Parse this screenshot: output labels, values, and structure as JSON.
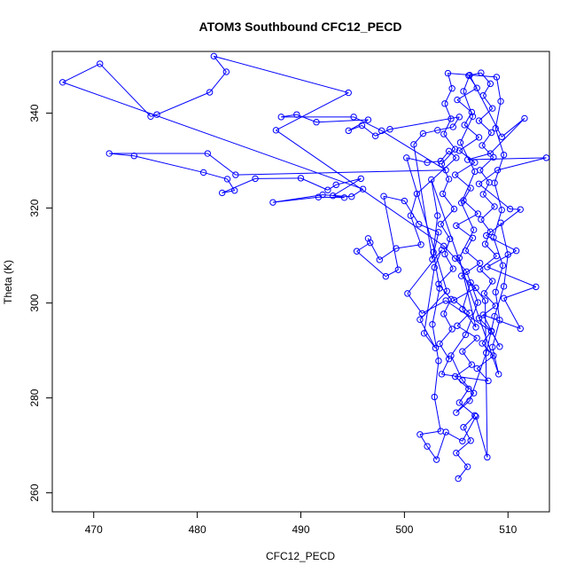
{
  "chart_data": {
    "type": "line",
    "title": "ATOM3 Southbound CFC12_PECD",
    "xlabel": "CFC12_PECD",
    "ylabel": "Theta (K)",
    "xlim": [
      466,
      514
    ],
    "ylim": [
      256,
      353
    ],
    "xticks": [
      470,
      480,
      490,
      500,
      510
    ],
    "yticks": [
      260,
      280,
      300,
      320,
      340
    ],
    "grid": false,
    "legend": "none",
    "marker": "open-circle",
    "colors": {
      "series": "#0000ff",
      "axis": "#000000"
    },
    "series": [
      {
        "name": "",
        "points": [
          [
            505.2,
            263.0
          ],
          [
            506.1,
            265.5
          ],
          [
            505.0,
            268.4
          ],
          [
            506.4,
            271.0
          ],
          [
            505.7,
            273.8
          ],
          [
            506.8,
            276.3
          ],
          [
            505.3,
            279.0
          ],
          [
            506.2,
            281.9
          ],
          [
            504.9,
            284.5
          ],
          [
            506.5,
            287.0
          ],
          [
            505.6,
            289.8
          ],
          [
            507.0,
            292.6
          ],
          [
            505.1,
            295.2
          ],
          [
            506.3,
            297.9
          ],
          [
            504.8,
            300.6
          ],
          [
            506.9,
            303.2
          ],
          [
            505.5,
            305.7
          ],
          [
            507.3,
            308.4
          ],
          [
            505.9,
            311.0
          ],
          [
            506.6,
            313.7
          ],
          [
            505.0,
            316.3
          ],
          [
            507.1,
            318.8
          ],
          [
            505.7,
            321.6
          ],
          [
            506.4,
            324.2
          ],
          [
            504.9,
            327.0
          ],
          [
            506.8,
            329.6
          ],
          [
            505.3,
            332.1
          ],
          [
            507.2,
            334.9
          ],
          [
            505.8,
            337.5
          ],
          [
            506.5,
            340.2
          ],
          [
            505.1,
            342.8
          ],
          [
            507.0,
            345.3
          ],
          [
            506.2,
            347.9
          ],
          [
            507.4,
            348.5
          ],
          [
            508.3,
            346.2
          ],
          [
            507.6,
            343.7
          ],
          [
            508.5,
            341.0
          ],
          [
            507.2,
            338.4
          ],
          [
            508.4,
            335.9
          ],
          [
            507.5,
            333.2
          ],
          [
            508.6,
            330.7
          ],
          [
            507.3,
            328.0
          ],
          [
            508.2,
            325.4
          ],
          [
            507.6,
            322.9
          ],
          [
            508.7,
            320.3
          ],
          [
            507.4,
            317.6
          ],
          [
            508.3,
            315.0
          ],
          [
            507.8,
            312.4
          ],
          [
            508.9,
            309.9
          ],
          [
            507.3,
            307.1
          ],
          [
            508.5,
            304.6
          ],
          [
            507.7,
            302.0
          ],
          [
            508.8,
            299.4
          ],
          [
            507.2,
            296.8
          ],
          [
            508.4,
            294.1
          ],
          [
            507.5,
            291.5
          ],
          [
            508.6,
            288.9
          ],
          [
            507.0,
            286.2
          ],
          [
            508.1,
            283.6
          ],
          [
            503.6,
            285.0
          ],
          [
            504.3,
            288.2
          ],
          [
            503.4,
            291.4
          ],
          [
            504.6,
            294.5
          ],
          [
            503.8,
            297.7
          ],
          [
            504.5,
            300.8
          ],
          [
            503.3,
            304.0
          ],
          [
            504.7,
            307.2
          ],
          [
            503.9,
            310.3
          ],
          [
            504.4,
            313.5
          ],
          [
            503.5,
            316.6
          ],
          [
            504.8,
            319.8
          ],
          [
            503.7,
            323.0
          ],
          [
            504.3,
            326.1
          ],
          [
            503.6,
            329.3
          ],
          [
            504.9,
            332.4
          ],
          [
            503.8,
            335.6
          ],
          [
            504.5,
            338.8
          ],
          [
            503.9,
            342.0
          ],
          [
            504.6,
            345.2
          ],
          [
            504.2,
            348.4
          ],
          [
            508.9,
            347.6
          ],
          [
            509.3,
            342.5
          ],
          [
            508.8,
            336.8
          ],
          [
            509.6,
            331.2
          ],
          [
            508.7,
            325.3
          ],
          [
            509.4,
            319.6
          ],
          [
            508.6,
            313.8
          ],
          [
            509.5,
            307.9
          ],
          [
            508.8,
            302.3
          ],
          [
            509.2,
            296.4
          ],
          [
            508.5,
            290.7
          ],
          [
            509.1,
            285.0
          ],
          [
            502.6,
            326.0
          ],
          [
            503.2,
            318.4
          ],
          [
            502.8,
            310.7
          ],
          [
            503.4,
            303.1
          ],
          [
            502.7,
            295.5
          ],
          [
            503.3,
            287.8
          ],
          [
            502.9,
            280.2
          ],
          [
            503.5,
            273.0
          ],
          [
            501.5,
            272.3
          ],
          [
            502.2,
            269.8
          ],
          [
            503.1,
            267.0
          ],
          [
            504.0,
            272.8
          ],
          [
            505.6,
            270.9
          ],
          [
            506.9,
            276.1
          ],
          [
            508.0,
            267.5
          ],
          [
            507.8,
            300.5
          ],
          [
            506.4,
            304.3
          ],
          [
            505.6,
            298.7
          ],
          [
            506.9,
            294.9
          ],
          [
            505.3,
            309.5
          ],
          [
            506.7,
            315.4
          ],
          [
            505.5,
            321.1
          ],
          [
            506.8,
            327.7
          ],
          [
            505.4,
            333.8
          ],
          [
            506.6,
            339.3
          ],
          [
            505.7,
            344.6
          ],
          [
            506.3,
            348.0
          ],
          [
            509.4,
            335.0
          ],
          [
            511.6,
            338.9
          ],
          [
            508.3,
            331.5
          ],
          [
            506.1,
            330.2
          ],
          [
            513.7,
            330.6
          ],
          [
            509.0,
            328.0
          ],
          [
            507.2,
            325.1
          ],
          [
            510.2,
            319.8
          ],
          [
            511.2,
            319.7
          ],
          [
            507.9,
            314.2
          ],
          [
            510.8,
            311.0
          ],
          [
            508.0,
            307.6
          ],
          [
            512.7,
            303.4
          ],
          [
            509.6,
            301.0
          ],
          [
            511.2,
            294.6
          ],
          [
            507.6,
            297.5
          ],
          [
            509.2,
            290.8
          ],
          [
            508.4,
            294.0
          ],
          [
            504.0,
            300.5
          ],
          [
            501.7,
            297.8
          ],
          [
            500.3,
            302.0
          ],
          [
            503.6,
            311.2
          ],
          [
            502.9,
            307.5
          ],
          [
            501.9,
            293.6
          ],
          [
            503.0,
            290.5
          ],
          [
            501.5,
            296.5
          ],
          [
            504.1,
            302.5
          ],
          [
            500.2,
            330.6
          ],
          [
            502.2,
            329.6
          ],
          [
            503.5,
            329.9
          ],
          [
            504.3,
            332.0
          ],
          [
            505.0,
            330.6
          ],
          [
            501.2,
            323.0
          ],
          [
            500.6,
            318.4
          ],
          [
            501.6,
            312.3
          ],
          [
            499.2,
            311.5
          ],
          [
            497.6,
            309.1
          ],
          [
            496.5,
            313.6
          ],
          [
            496.7,
            312.7
          ],
          [
            495.4,
            310.9
          ],
          [
            498.2,
            305.6
          ],
          [
            499.4,
            307.0
          ],
          [
            498.0,
            322.5
          ],
          [
            500.0,
            321.5
          ],
          [
            501.4,
            316.6
          ],
          [
            503.3,
            314.9
          ],
          [
            502.7,
            309.2
          ],
          [
            500.9,
            333.4
          ],
          [
            501.8,
            335.7
          ],
          [
            503.2,
            336.4
          ],
          [
            504.7,
            337.1
          ],
          [
            505.3,
            339.2
          ],
          [
            498.6,
            336.6
          ],
          [
            497.2,
            335.2
          ],
          [
            495.9,
            337.4
          ],
          [
            494.6,
            336.3
          ],
          [
            496.5,
            338.6
          ],
          [
            491.5,
            338.1
          ],
          [
            489.6,
            339.7
          ],
          [
            488.1,
            339.2
          ],
          [
            495.1,
            339.2
          ],
          [
            497.8,
            336.3
          ],
          [
            504.0,
            328.0
          ],
          [
            483.7,
            327.0
          ],
          [
            481.0,
            331.5
          ],
          [
            471.5,
            331.5
          ],
          [
            473.9,
            331.0
          ],
          [
            480.6,
            327.5
          ],
          [
            482.9,
            326.1
          ],
          [
            483.6,
            323.7
          ],
          [
            482.4,
            323.2
          ],
          [
            485.6,
            326.2
          ],
          [
            490.0,
            326.3
          ],
          [
            492.6,
            323.8
          ],
          [
            493.4,
            324.9
          ],
          [
            495.8,
            326.2
          ],
          [
            493.1,
            322.6
          ],
          [
            494.2,
            322.2
          ],
          [
            491.7,
            322.3
          ],
          [
            487.3,
            321.2
          ],
          [
            492.1,
            322.8
          ],
          [
            494.9,
            322.4
          ],
          [
            496.0,
            324.0
          ],
          [
            467.0,
            346.5
          ],
          [
            470.6,
            350.4
          ],
          [
            475.5,
            339.3
          ],
          [
            476.1,
            339.7
          ],
          [
            481.2,
            344.4
          ],
          [
            482.8,
            348.7
          ],
          [
            481.6,
            352.0
          ],
          [
            494.6,
            344.3
          ],
          [
            487.6,
            336.4
          ],
          [
            503.8,
            312.0
          ],
          [
            504.9,
            309.4
          ],
          [
            506.0,
            306.6
          ],
          [
            507.1,
            300.1
          ],
          [
            505.9,
            293.3
          ],
          [
            504.5,
            288.9
          ],
          [
            505.6,
            283.7
          ],
          [
            506.7,
            281.0
          ],
          [
            505.0,
            276.9
          ],
          [
            506.3,
            279.4
          ],
          [
            507.9,
            289.5
          ],
          [
            508.7,
            297.2
          ],
          [
            509.6,
            303.5
          ],
          [
            510.0,
            310.2
          ],
          [
            509.3,
            316.9
          ]
        ]
      }
    ]
  }
}
